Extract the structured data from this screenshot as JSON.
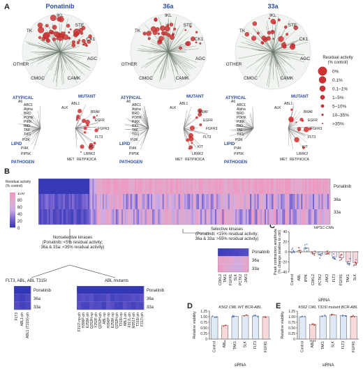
{
  "panels": {
    "a": "A",
    "b": "B",
    "c": "C",
    "d": "D",
    "e": "E"
  },
  "compounds": [
    "Ponatinib",
    "36a",
    "33a"
  ],
  "kinome_groups": [
    "TK",
    "IKL",
    "STE",
    "CK1",
    "AGC",
    "CAMK",
    "CMGC",
    "OTHER"
  ],
  "atypical_labels": [
    "ATYPICAL",
    "A6",
    "ABC1",
    "Alpha",
    "BRD",
    "PDHK",
    "PIKK",
    "RIO",
    "TAF",
    "TIF1",
    "LIPID",
    "PI3K",
    "PI4K",
    "PIP5K",
    "PATHOGEN"
  ],
  "mutant_labels": [
    "MUTANT",
    "ABL1",
    "ALK",
    "BRAF",
    "EGFR",
    "FGFR3",
    "FLT3",
    "KIT",
    "LRRK2",
    "MET",
    "RET",
    "PIK3CA"
  ],
  "legend": {
    "title": "Residual activity\n(% control)",
    "items": [
      "0%",
      "0.1%",
      "0.1–1%",
      "1–5%",
      "5–10%",
      "10–35%",
      ">35%"
    ],
    "sizes": [
      10,
      8,
      6.5,
      5,
      3.5,
      2.2,
      1.2
    ]
  },
  "heatmap_b": {
    "title": "Residual activity\n(% control)",
    "scale": [
      "100",
      "80",
      "60",
      "40",
      "20",
      "0"
    ],
    "rows": [
      "Ponatinib",
      "36a",
      "33a"
    ]
  },
  "selective": {
    "title": "Selective kinases\n(Ponatinib: <15% residual activity;\n36a & 33a: >55% residual activity)",
    "kinases": [
      "CDKL2",
      "TAK1",
      "FGFR1",
      "SLK",
      "PCTK2",
      "JAK3"
    ],
    "rows": [
      "Ponatinib",
      "36a",
      "33a"
    ]
  },
  "nonselective": {
    "title": "Nonselective kinases\n(Ponatinib: <5% residual activity;\n36a & 33a: <35% residual activity)",
    "flt3_title": "FLT3, ABL, ABL T315I",
    "flt3_kinases": [
      "FLT3",
      "ABL1-ph",
      "ABL1 (T315I)-ph"
    ],
    "abl_title": "ABL mutants",
    "abl_kinases": [
      "F317I-np-ph",
      "H396P-ph",
      "E255K-ph",
      "Q252H-np",
      "Y253F-ph",
      "Q252H-ph",
      "ABL-np",
      "H396P-np",
      "E255K-np",
      "Q252H-ph",
      "T315I-np",
      "ABL1-ph",
      "F317L-ph",
      "M351T-ph",
      "T315I-ph",
      "F317I-ph"
    ],
    "rows": [
      "Ponatinib",
      "36a",
      "33a"
    ]
  },
  "chart_data": [
    {
      "type": "bar",
      "title": "hiPSC-CMs",
      "ylabel": "Peak contraction amplitude\n(% change relative to ctrl)",
      "xlabel": "siRNA",
      "categories": [
        "Control",
        "ABL",
        "IPPK",
        "CDKL2",
        "PCTK2",
        "JAK3",
        "FLT3",
        "FGFR1",
        "TAK1",
        "SLK"
      ],
      "values": [
        0,
        2,
        8,
        -3,
        -6,
        -5,
        -10,
        -12,
        -20,
        -22
      ],
      "significance": [
        "",
        "",
        "",
        "",
        "",
        "",
        "*",
        "*",
        "**",
        "**"
      ],
      "ylim": [
        -40,
        40
      ],
      "yticks": [
        "40",
        "20",
        "0",
        "−20",
        "−40"
      ]
    },
    {
      "type": "bar",
      "title": "K562 CML WT BCR-ABL",
      "ylabel": "Relative viability",
      "xlabel": "siRNA",
      "categories": [
        "Control",
        "ABL",
        "TAK1",
        "SLK",
        "FLT3",
        "FGFR1"
      ],
      "values": [
        1.0,
        0.6,
        1.02,
        1.05,
        1.03,
        1.0
      ],
      "significance": [
        "",
        "*",
        "",
        "",
        "",
        ""
      ],
      "ylim": [
        0,
        1.25
      ],
      "yticks": [
        "1.25",
        "1.00",
        "0.75",
        "0.50",
        "0.25",
        "0"
      ]
    },
    {
      "type": "bar",
      "title": "K562 CML T315I mutant BCR-ABL",
      "ylabel": "Relative viability",
      "xlabel": "siRNA",
      "categories": [
        "Control",
        "ABL",
        "TAK1",
        "SLK",
        "FLT3",
        "FGFR1"
      ],
      "values": [
        1.0,
        0.65,
        1.03,
        1.08,
        1.05,
        1.02
      ],
      "significance": [
        "",
        "****",
        "",
        "",
        "",
        ""
      ],
      "ylim": [
        0,
        1.25
      ],
      "yticks": [
        "1.25",
        "1.00",
        "0.75",
        "0.50",
        "0.25",
        "0"
      ]
    }
  ]
}
